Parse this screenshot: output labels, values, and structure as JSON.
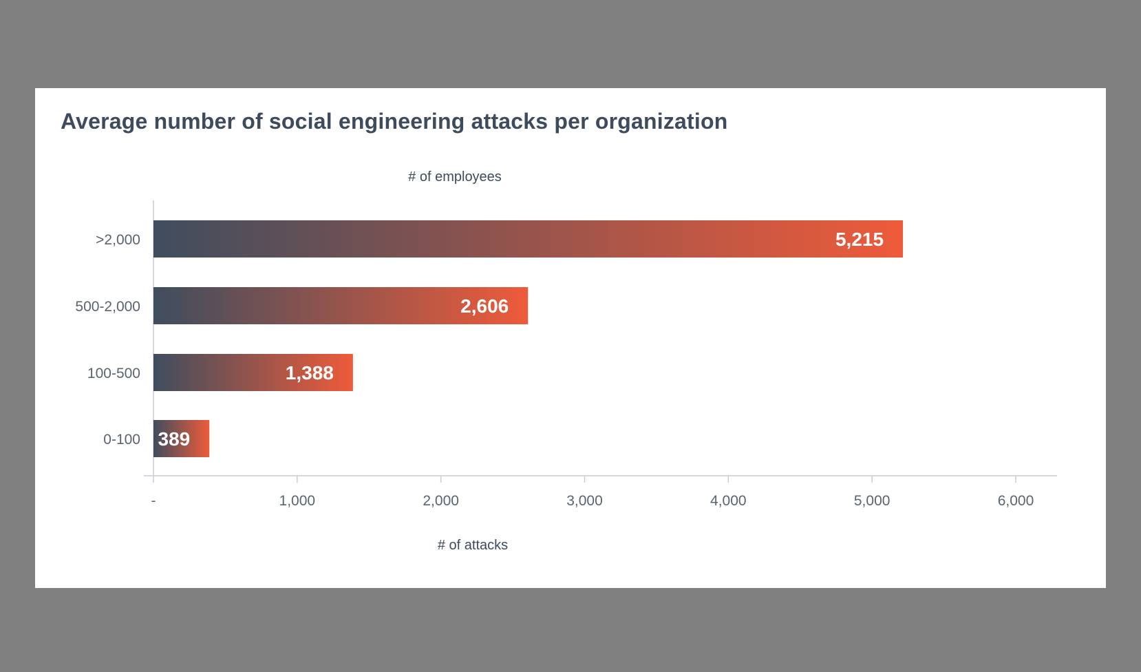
{
  "chart_data": {
    "type": "bar",
    "orientation": "horizontal",
    "title": "Average number of social engineering attacks per organization",
    "ylabel": "# of employees",
    "xlabel": "# of attacks",
    "categories": [
      ">2,000",
      "500-2,000",
      "100-500",
      "0-100"
    ],
    "values": [
      5215,
      2606,
      1388,
      389
    ],
    "data_labels": [
      "5,215",
      "2,606",
      "1,388",
      "389"
    ],
    "xlim": [
      0,
      6000
    ],
    "x_ticks": [
      0,
      1000,
      2000,
      3000,
      4000,
      5000,
      6000
    ],
    "x_tick_labels": [
      "-",
      "1,000",
      "2,000",
      "3,000",
      "4,000",
      "5,000",
      "6,000"
    ],
    "grid": false,
    "legend": "none",
    "colors": {
      "gradient_start": "#3f4d5e",
      "gradient_end": "#ee5b3a",
      "axis": "#c8ccd2",
      "text": "#3d4b5c",
      "muted_text": "#5a6470"
    }
  }
}
